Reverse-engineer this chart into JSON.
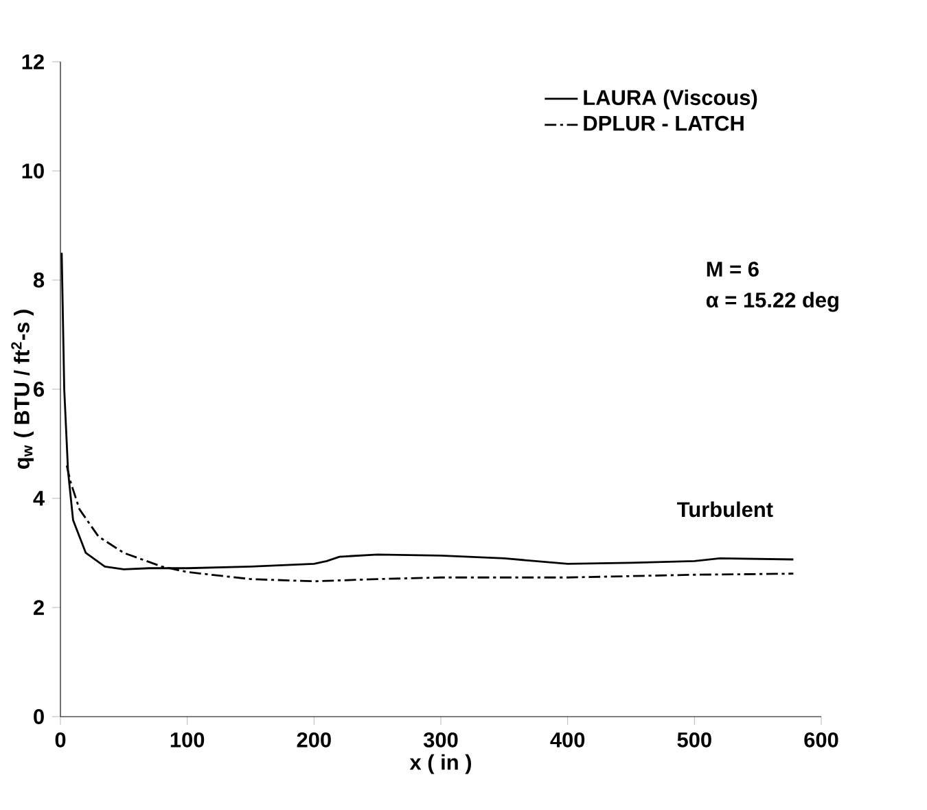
{
  "chart_data": {
    "type": "line",
    "xlabel": "x ( in )",
    "ylabel": "q$_{w}$ ( BTU / ft$^{2}$-s )",
    "xlim": [
      0,
      600
    ],
    "ylim": [
      0,
      12
    ],
    "xticks": [
      0,
      100,
      200,
      300,
      400,
      500,
      600
    ],
    "yticks": [
      0,
      2,
      4,
      6,
      8,
      10,
      12
    ],
    "legend": "top right",
    "grid": false,
    "marker": "none",
    "annotations": [
      "M = 6",
      "α = 15.22 deg",
      "Turbulent"
    ],
    "series": [
      {
        "name": "LAURA (Viscous)",
        "color": "#000000",
        "line_style": "solid",
        "x": [
          1,
          3,
          6,
          10,
          20,
          35,
          50,
          70,
          100,
          150,
          200,
          210,
          220,
          250,
          300,
          350,
          400,
          450,
          500,
          520,
          578
        ],
        "values": [
          8.5,
          6,
          4.5,
          3.6,
          3.0,
          2.75,
          2.7,
          2.72,
          2.72,
          2.75,
          2.8,
          2.85,
          2.93,
          2.97,
          2.95,
          2.9,
          2.8,
          2.82,
          2.85,
          2.9,
          2.88
        ]
      },
      {
        "name": "DPLUR - LATCH",
        "color": "#000000",
        "line_style": "dashdotted",
        "x": [
          5,
          8,
          15,
          30,
          50,
          80,
          100,
          150,
          200,
          250,
          300,
          400,
          500,
          578
        ],
        "values": [
          4.6,
          4.3,
          3.8,
          3.3,
          3.0,
          2.75,
          2.65,
          2.52,
          2.48,
          2.52,
          2.55,
          2.55,
          2.6,
          2.62
        ]
      }
    ]
  }
}
